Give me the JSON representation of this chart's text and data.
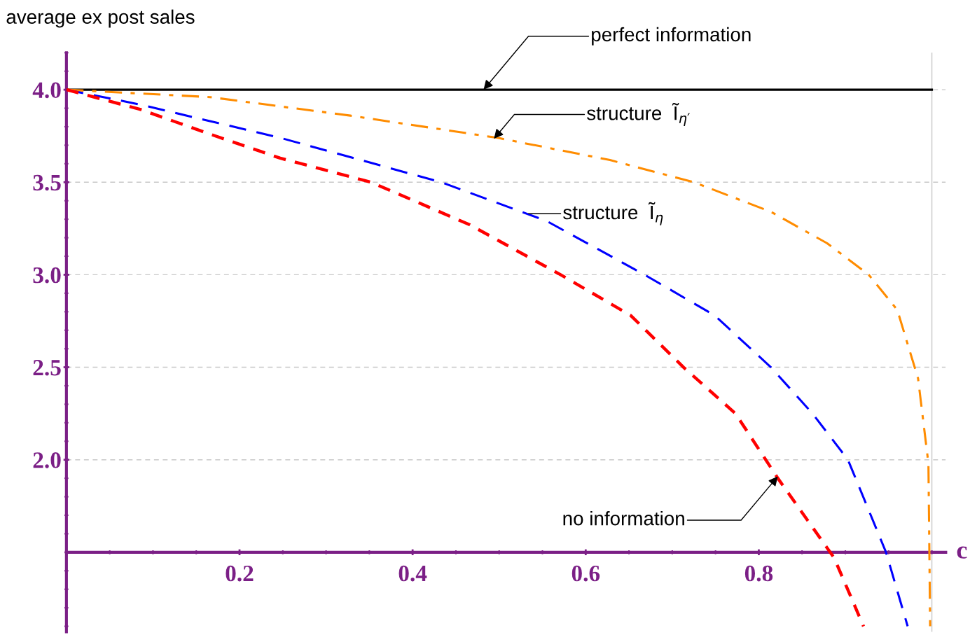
{
  "chart_data": {
    "type": "line",
    "ylabel": "average ex post sales",
    "xlabel": "c",
    "xlim": [
      0,
      1.016
    ],
    "ylim": [
      1.07,
      4.2
    ],
    "xticks": [
      {
        "value": 0.2,
        "label": "0.2"
      },
      {
        "value": 0.4,
        "label": "0.4"
      },
      {
        "value": 0.6,
        "label": "0.6"
      },
      {
        "value": 0.8,
        "label": "0.8"
      }
    ],
    "yticks": [
      {
        "value": 2,
        "label": "2.0"
      },
      {
        "value": 2.5,
        "label": "2.5"
      },
      {
        "value": 3,
        "label": "3.0"
      },
      {
        "value": 3.5,
        "label": "3.5"
      },
      {
        "value": 4,
        "label": "4.0"
      }
    ],
    "grid": "y",
    "marker": "none",
    "ref_lines": [
      {
        "axis": "x",
        "value": 1,
        "label": null,
        "color": "#c8c8c8",
        "line_style": "solid"
      }
    ],
    "series": [
      {
        "color": "#000000",
        "line_style": "solid",
        "x": [
          0,
          1.0
        ],
        "values": [
          4.0,
          4.0
        ]
      },
      {
        "color": "#ff8c00",
        "line_style": "dashdot",
        "x": [
          0,
          0.166,
          0.328,
          0.498,
          0.628,
          0.725,
          0.814,
          0.879,
          0.927,
          0.96,
          0.984,
          0.996,
          0.998
        ],
        "values": [
          4.0,
          3.96,
          3.86,
          3.74,
          3.62,
          3.5,
          3.34,
          3.17,
          3.0,
          2.81,
          2.44,
          1.98,
          1.1
        ]
      },
      {
        "color": "#0000ff",
        "line_style": "dashed",
        "x": [
          0,
          0.085,
          0.247,
          0.433,
          0.555,
          0.668,
          0.749,
          0.814,
          0.862,
          0.903,
          0.947,
          0.972
        ],
        "values": [
          4.0,
          3.92,
          3.74,
          3.5,
          3.29,
          3.0,
          2.78,
          2.5,
          2.25,
          2.0,
          1.5,
          1.1
        ]
      },
      {
        "color": "#ff0000",
        "line_style": "dashed",
        "x": [
          0,
          0.085,
          0.166,
          0.247,
          0.352,
          0.466,
          0.571,
          0.652,
          0.713,
          0.773,
          0.822,
          0.887,
          0.921
        ],
        "values": [
          4.0,
          3.894,
          3.76,
          3.63,
          3.5,
          3.27,
          3.0,
          2.78,
          2.5,
          2.25,
          1.9,
          1.47,
          1.1
        ]
      }
    ],
    "annotations": [
      {
        "text": "perfect information",
        "x": 0.482,
        "y": 4.0
      },
      {
        "text": "structure  Ĩ$_{η′}$",
        "x": 0.494,
        "y": 3.735
      },
      {
        "text": "structure  Ĩ$_{η}$",
        "x": 0.534,
        "y": 3.33
      },
      {
        "text": "no information",
        "x": 0.822,
        "y": 1.91
      }
    ]
  }
}
